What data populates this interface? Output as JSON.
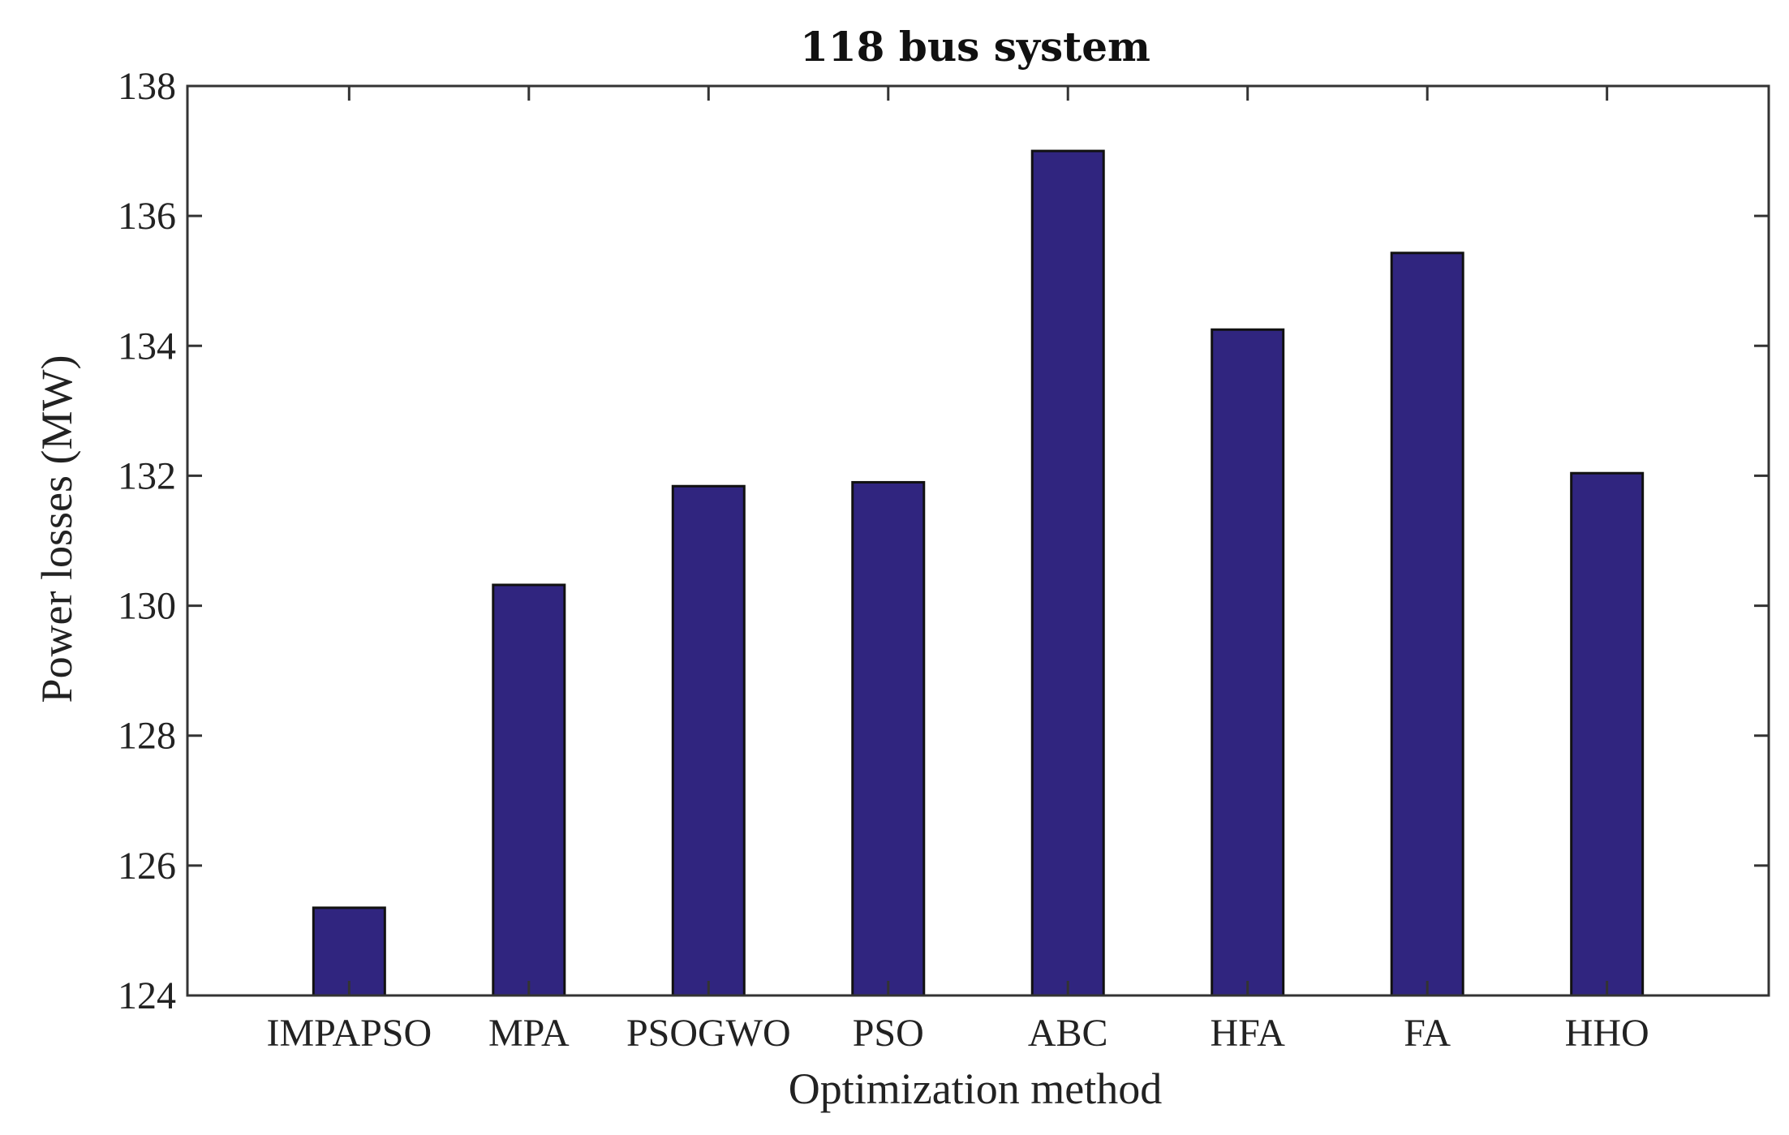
{
  "chart_data": {
    "type": "bar",
    "title": "118 bus system",
    "xlabel": "Optimization method",
    "ylabel": "Power losses (MW)",
    "categories": [
      "IMPAPSO",
      "MPA",
      "PSOGWO",
      "PSO",
      "ABC",
      "HFA",
      "FA",
      "HHO"
    ],
    "values": [
      125.35,
      130.32,
      131.84,
      131.9,
      137.0,
      134.25,
      135.43,
      132.04
    ],
    "ylim": [
      124,
      138
    ],
    "yticks": [
      "124",
      "126",
      "128",
      "130",
      "132",
      "134",
      "136",
      "138"
    ],
    "grid": false,
    "bar_color": "#30257f"
  }
}
